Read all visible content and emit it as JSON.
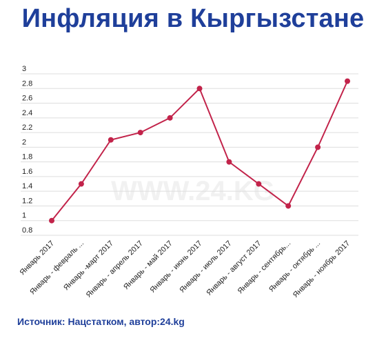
{
  "header": {
    "title": "Инфляция в Кыргызстане"
  },
  "footer": {
    "source": "Источник: Нацстатком, автор:24.kg"
  },
  "watermark": "WWW.24.KG",
  "colors": {
    "line": "#c2234a",
    "title": "#1f3f9a",
    "grid": "#dddddd"
  },
  "chart_data": {
    "type": "line",
    "title": "Инфляция в Кыргызстане",
    "xlabel": "",
    "ylabel": "",
    "categories": [
      "Январь 2017",
      "Январь - февраль ...",
      "Январь -март 2017",
      "Январь - апрель 2017",
      "Январь - май 2017",
      "Январь - июнь 2017",
      "Январь - июль 2017",
      "Январь - август 2017",
      "Январь - сентябрь...",
      "Январь - октябрь ...",
      "Январь - ноябрь 2017"
    ],
    "series": [
      {
        "values": [
          1.0,
          1.5,
          2.1,
          2.2,
          2.4,
          2.8,
          1.8,
          1.5,
          1.2,
          2.0,
          2.9
        ]
      }
    ],
    "ylim": [
      0.8,
      3
    ],
    "yticks": [
      "0.8",
      "1",
      "1.2",
      "1.4",
      "1.6",
      "1.8",
      "2",
      "2.2",
      "2.4",
      "2.6",
      "2.8",
      "3"
    ],
    "grid": true,
    "legend": "none"
  }
}
